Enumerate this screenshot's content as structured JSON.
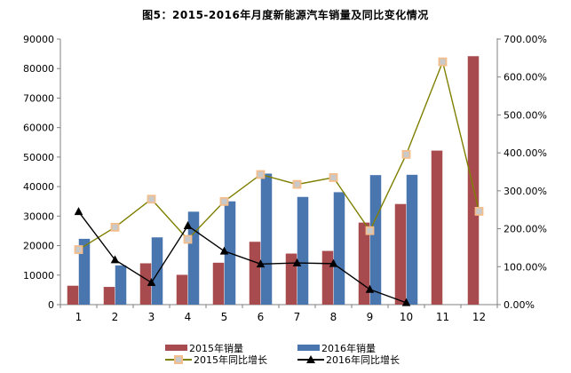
{
  "title": "图5：2015-2016年月度新能源汽车销量及同比变化情况",
  "colors": {
    "bar_2015": "#a84b4e",
    "bar_2016": "#4a76b0",
    "line_2015": "#7f7f00",
    "line_2016": "#000000",
    "marker_square_fill": "#c9c9c9",
    "marker_square_border": "#f4be8c",
    "axis": "#808080",
    "text": "#000000"
  },
  "chart_data": {
    "type": "bar",
    "subtype": "bar-line-combo",
    "title": "图5：2015-2016年月度新能源汽车销量及同比变化情况",
    "categories": [
      1,
      2,
      3,
      4,
      5,
      6,
      7,
      8,
      9,
      10,
      11,
      12
    ],
    "series": [
      {
        "name": "2015年销量",
        "type": "bar",
        "axis": "left",
        "color": "#a84b4e",
        "values": [
          6400,
          6000,
          14000,
          10100,
          14200,
          21300,
          17300,
          18200,
          27800,
          34100,
          52200,
          84200
        ]
      },
      {
        "name": "2016年销量",
        "type": "bar",
        "axis": "left",
        "color": "#4a76b0",
        "values": [
          22300,
          13300,
          22800,
          31500,
          35000,
          44400,
          36500,
          38100,
          43900,
          44000,
          null,
          null
        ]
      },
      {
        "name": "2015年同比增长",
        "type": "line",
        "axis": "right",
        "color": "#7f7f00",
        "marker": "square",
        "values": [
          145,
          204,
          278,
          172,
          272,
          343,
          317,
          335,
          195,
          396,
          640,
          246
        ]
      },
      {
        "name": "2016年同比增长",
        "type": "line",
        "axis": "right",
        "color": "#000000",
        "marker": "triangle",
        "values": [
          245,
          118,
          58,
          208,
          141,
          107,
          110,
          108,
          40,
          5,
          null,
          null
        ]
      }
    ],
    "left_axis": {
      "min": 0,
      "max": 90000,
      "step": 10000
    },
    "right_axis": {
      "min": 0,
      "max": 700,
      "step": 100,
      "format": "0.00%"
    },
    "xlabel": "",
    "ylabel": "",
    "grid": false,
    "legend_position": "bottom"
  }
}
